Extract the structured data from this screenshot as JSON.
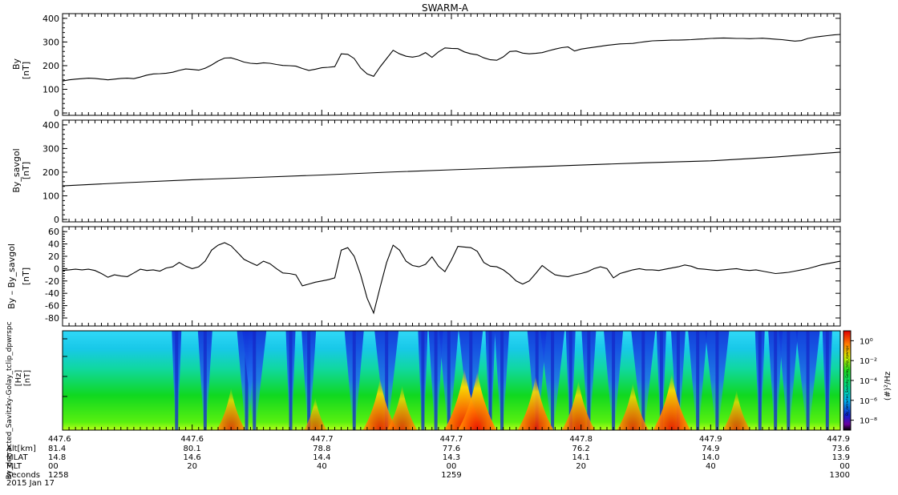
{
  "title": "SWARM-A",
  "chart_data": [
    {
      "type": "line",
      "panel": "By",
      "ylabel": "By",
      "yunit": "[nT]",
      "ylim": [
        -10,
        420
      ],
      "yticks": [
        "0",
        "100",
        "200",
        "300",
        "400"
      ],
      "ytick_values": [
        0,
        100,
        200,
        300,
        400
      ],
      "x": [
        0,
        0.5,
        1,
        1.5,
        2,
        2.5,
        3,
        3.5,
        4,
        4.5,
        5,
        5.5,
        6,
        6.5,
        7,
        7.5,
        8,
        8.5,
        9,
        9.5,
        10,
        10.5,
        11,
        11.5,
        12,
        12.5,
        13,
        13.5,
        14,
        14.5,
        15,
        15.5,
        16,
        16.5,
        17,
        17.5,
        18,
        18.5,
        19,
        19.5,
        20,
        20.5,
        21,
        21.5,
        22,
        22.5,
        23,
        23.5,
        24,
        24.5,
        25,
        25.5,
        26,
        26.5,
        27,
        27.5,
        28,
        28.5,
        29,
        29.5,
        30,
        30.5,
        31,
        31.5,
        32,
        32.5,
        33,
        33.5,
        34,
        34.5,
        35,
        35.5,
        36,
        36.5,
        37,
        37.5,
        38,
        38.5,
        39,
        39.5,
        40,
        40.5,
        41,
        41.5,
        42,
        42.5,
        43,
        43.5,
        44,
        44.5,
        45,
        45.5,
        46,
        46.5,
        47,
        47.5,
        48,
        48.5,
        49,
        49.5,
        50,
        50.5,
        51,
        51.5,
        52,
        52.5,
        53,
        53.5,
        54,
        54.5,
        55,
        55.5,
        56,
        56.5,
        57,
        57.5,
        58,
        58.5,
        59,
        59.5,
        60
      ],
      "y": [
        135,
        140,
        143,
        145,
        147,
        146,
        143,
        140,
        143,
        146,
        147,
        145,
        152,
        160,
        165,
        166,
        168,
        172,
        180,
        186,
        184,
        181,
        189,
        203,
        220,
        232,
        233,
        225,
        215,
        210,
        208,
        212,
        210,
        205,
        201,
        200,
        198,
        188,
        180,
        185,
        191,
        193,
        196,
        250,
        248,
        230,
        190,
        165,
        155,
        195,
        230,
        265,
        250,
        240,
        236,
        241,
        255,
        235,
        258,
        275,
        273,
        272,
        258,
        250,
        246,
        233,
        225,
        223,
        237,
        260,
        262,
        253,
        250,
        252,
        255,
        263,
        270,
        276,
        279,
        262,
        270,
        274,
        278,
        282,
        286,
        289,
        292,
        293,
        294,
        298,
        302,
        305,
        306,
        307,
        308,
        308,
        309,
        310,
        312,
        313,
        315,
        316,
        317,
        316,
        315,
        315,
        314,
        315,
        316,
        314,
        312,
        310,
        307,
        304,
        306,
        315,
        320,
        324,
        327,
        330,
        332
      ]
    },
    {
      "type": "line",
      "panel": "By_savgol",
      "ylabel": "By_savgol",
      "yunit": "[nT]",
      "ylim": [
        -10,
        420
      ],
      "yticks": [
        "0",
        "100",
        "200",
        "300",
        "400"
      ],
      "ytick_values": [
        0,
        100,
        200,
        300,
        400
      ],
      "x": [
        0,
        5,
        10,
        15,
        20,
        25,
        30,
        35,
        40,
        45,
        50,
        55,
        60
      ],
      "y": [
        142,
        156,
        168,
        178,
        188,
        200,
        210,
        220,
        230,
        240,
        248,
        264,
        285
      ]
    },
    {
      "type": "line",
      "panel": "By - By_savgol",
      "ylabel": "By – By_savgol",
      "yunit": "[nT]",
      "ylim": [
        -93,
        68
      ],
      "yticks": [
        "60",
        "40",
        "20",
        "0",
        "-20",
        "-40",
        "-60",
        "-80"
      ],
      "ytick_values": [
        60,
        40,
        20,
        0,
        -20,
        -40,
        -60,
        -80
      ],
      "x": [
        0,
        0.5,
        1,
        1.5,
        2,
        2.5,
        3,
        3.5,
        4,
        4.5,
        5,
        5.5,
        6,
        6.5,
        7,
        7.5,
        8,
        8.5,
        9,
        9.5,
        10,
        10.5,
        11,
        11.5,
        12,
        12.5,
        13,
        13.5,
        14,
        14.5,
        15,
        15.5,
        16,
        16.5,
        17,
        17.5,
        18,
        18.5,
        19,
        19.5,
        20,
        20.5,
        21,
        21.5,
        22,
        22.5,
        23,
        23.5,
        24,
        24.5,
        25,
        25.5,
        26,
        26.5,
        27,
        27.5,
        28,
        28.5,
        29,
        29.5,
        30,
        30.5,
        31,
        31.5,
        32,
        32.5,
        33,
        33.5,
        34,
        34.5,
        35,
        35.5,
        36,
        36.5,
        37,
        37.5,
        38,
        38.5,
        39,
        39.5,
        40,
        40.5,
        41,
        41.5,
        42,
        42.5,
        43,
        43.5,
        44,
        44.5,
        45,
        45.5,
        46,
        46.5,
        47,
        47.5,
        48,
        48.5,
        49,
        49.5,
        50,
        50.5,
        51,
        51.5,
        52,
        52.5,
        53,
        53.5,
        54,
        54.5,
        55,
        55.5,
        56,
        56.5,
        57,
        57.5,
        58,
        58.5,
        59,
        59.5,
        60
      ],
      "y": [
        -3,
        -2,
        -1,
        -2,
        -1,
        -3,
        -8,
        -14,
        -10,
        -12,
        -13,
        -7,
        -1,
        -3,
        -2,
        -4,
        1,
        3,
        10,
        4,
        0,
        3,
        12,
        30,
        38,
        42,
        37,
        26,
        15,
        10,
        5,
        12,
        8,
        0,
        -7,
        -8,
        -10,
        -28,
        -25,
        -22,
        -20,
        -18,
        -15,
        30,
        34,
        20,
        -10,
        -48,
        -72,
        -30,
        10,
        38,
        30,
        12,
        5,
        3,
        7,
        19,
        4,
        -5,
        14,
        36,
        35,
        34,
        28,
        10,
        4,
        3,
        -2,
        -10,
        -20,
        -25,
        -20,
        -8,
        5,
        -3,
        -10,
        -12,
        -13,
        -10,
        -8,
        -5,
        0,
        3,
        0,
        -15,
        -8,
        -5,
        -2,
        0,
        -2,
        -2,
        -3,
        -1,
        1,
        3,
        6,
        4,
        0,
        -1,
        -2,
        -3,
        -2,
        -1,
        0,
        -2,
        -3,
        -2,
        -4,
        -6,
        -8,
        -7,
        -6,
        -4,
        -2,
        0,
        3,
        6,
        8,
        10,
        12
      ]
    },
    {
      "type": "heatmap",
      "panel": "By_detracted_Savitzky-Golay_tclip_dpwrspc",
      "ylabel": "By_detracted_Savitzky-Golay_tclip_dpwrspc",
      "yunit": "[Hz]",
      "yunit2": "[nT]",
      "colorbar_label": "(#)²/Hz",
      "colorbar_ticks": [
        "10⁰",
        "10⁻²",
        "10⁻⁴",
        "10⁻⁶",
        "10⁻⁸"
      ],
      "colorbar_tick_values": [
        0,
        -2,
        -4,
        -6,
        -8
      ],
      "colorbar_range": [
        -9,
        1
      ],
      "colorbar_inner_label": "By_detracted_Savitzky-Golay_tclip_dpwrspc",
      "low_power_columns": [
        8.8,
        11.0,
        14.2,
        14.8,
        17.6,
        19.0,
        22.5,
        25.0,
        27.8,
        28.8,
        29.8,
        31.5,
        33.0,
        33.9,
        36.6,
        37.8,
        39.2,
        40.6,
        42.5,
        44.8,
        46.2,
        47.5,
        49.0,
        50.5,
        53.8,
        55.0,
        56.0,
        57.5,
        59.0
      ],
      "high_power_bursts": [
        {
          "x": 13.0,
          "v": 0.55
        },
        {
          "x": 19.5,
          "v": 0.35
        },
        {
          "x": 24.5,
          "v": 0.75
        },
        {
          "x": 26.2,
          "v": 0.6
        },
        {
          "x": 31.0,
          "v": 0.95
        },
        {
          "x": 32.0,
          "v": 0.9
        },
        {
          "x": 36.5,
          "v": 0.8
        },
        {
          "x": 39.8,
          "v": 0.7
        },
        {
          "x": 44.0,
          "v": 0.65
        },
        {
          "x": 47.0,
          "v": 0.85
        },
        {
          "x": 52.0,
          "v": 0.5
        }
      ]
    }
  ],
  "xaxis": {
    "range": [
      0,
      60
    ],
    "tick_positions": [
      0,
      10,
      20,
      30,
      40,
      50,
      60
    ],
    "rows": [
      {
        "label": "",
        "values": [
          "447.6",
          "447.6",
          "447.7",
          "447.7",
          "447.8",
          "447.9",
          "447.9"
        ]
      },
      {
        "label": "Alt[km]",
        "values": [
          "81.4",
          "80.1",
          "78.8",
          "77.6",
          "76.2",
          "74.9",
          "73.6"
        ]
      },
      {
        "label": "MLAT",
        "values": [
          "14.8",
          "14.6",
          "14.4",
          "14.3",
          "14.1",
          "14.0",
          "13.9"
        ]
      },
      {
        "label": "MLT",
        "values": [
          "00",
          "20",
          "40",
          "00",
          "20",
          "40",
          "00"
        ]
      },
      {
        "label": "Seconds",
        "values": [
          "1258",
          "",
          "",
          "1259",
          "",
          "",
          "1300"
        ]
      }
    ],
    "date": "2015 Jan 17"
  }
}
